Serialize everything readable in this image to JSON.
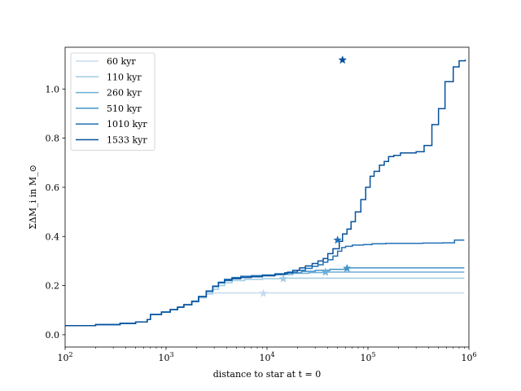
{
  "chart_data": {
    "type": "line",
    "drawstyle": "steps-post",
    "xscale": "log",
    "xlabel": "distance to star at t = 0",
    "ylabel": "ΣΔM_i in M_⊙",
    "xlim": [
      100,
      1000000
    ],
    "ylim": [
      -0.05,
      1.17
    ],
    "x_ticks": [
      {
        "value": 100,
        "base": "10",
        "exp": "2"
      },
      {
        "value": 1000,
        "base": "10",
        "exp": "3"
      },
      {
        "value": 10000,
        "base": "10",
        "exp": "4"
      },
      {
        "value": 100000,
        "base": "10",
        "exp": "5"
      },
      {
        "value": 1000000,
        "base": "10",
        "exp": "6"
      }
    ],
    "y_ticks": [
      "0.0",
      "0.2",
      "0.4",
      "0.6",
      "0.8",
      "1.0"
    ],
    "legend_position": "upper-left",
    "series": [
      {
        "name": "60 kyr",
        "color": "#c6dbef",
        "star": [
          9200,
          0.168
        ],
        "points": [
          [
            100,
            0.037
          ],
          [
            200,
            0.041
          ],
          [
            350,
            0.046
          ],
          [
            500,
            0.052
          ],
          [
            650,
            0.062
          ],
          [
            700,
            0.082
          ],
          [
            900,
            0.092
          ],
          [
            1100,
            0.102
          ],
          [
            1300,
            0.112
          ],
          [
            1500,
            0.122
          ],
          [
            1800,
            0.134
          ],
          [
            2100,
            0.15
          ],
          [
            2500,
            0.165
          ],
          [
            2900,
            0.17
          ],
          [
            9200,
            0.17
          ],
          [
            900000,
            0.17
          ]
        ]
      },
      {
        "name": "110 kyr",
        "color": "#9ecae1",
        "star": [
          14500,
          0.228
        ],
        "points": [
          [
            100,
            0.037
          ],
          [
            200,
            0.041
          ],
          [
            350,
            0.046
          ],
          [
            500,
            0.052
          ],
          [
            650,
            0.062
          ],
          [
            700,
            0.082
          ],
          [
            900,
            0.092
          ],
          [
            1100,
            0.102
          ],
          [
            1300,
            0.112
          ],
          [
            1500,
            0.122
          ],
          [
            1800,
            0.134
          ],
          [
            2100,
            0.15
          ],
          [
            2500,
            0.168
          ],
          [
            2900,
            0.185
          ],
          [
            3300,
            0.2
          ],
          [
            3800,
            0.212
          ],
          [
            4500,
            0.22
          ],
          [
            6000,
            0.225
          ],
          [
            9000,
            0.228
          ],
          [
            14500,
            0.23
          ],
          [
            900000,
            0.23
          ]
        ]
      },
      {
        "name": "260 kyr",
        "color": "#6baed6",
        "star": [
          38000,
          0.255
        ],
        "points": [
          [
            100,
            0.037
          ],
          [
            200,
            0.041
          ],
          [
            350,
            0.046
          ],
          [
            500,
            0.052
          ],
          [
            650,
            0.062
          ],
          [
            700,
            0.082
          ],
          [
            900,
            0.092
          ],
          [
            1100,
            0.102
          ],
          [
            1300,
            0.112
          ],
          [
            1500,
            0.122
          ],
          [
            1800,
            0.136
          ],
          [
            2100,
            0.155
          ],
          [
            2500,
            0.175
          ],
          [
            2900,
            0.195
          ],
          [
            3300,
            0.21
          ],
          [
            3800,
            0.22
          ],
          [
            4500,
            0.228
          ],
          [
            5500,
            0.235
          ],
          [
            7000,
            0.238
          ],
          [
            9000,
            0.24
          ],
          [
            12000,
            0.245
          ],
          [
            18000,
            0.25
          ],
          [
            26000,
            0.253
          ],
          [
            38000,
            0.255
          ],
          [
            900000,
            0.255
          ]
        ]
      },
      {
        "name": "510 kyr",
        "color": "#4292c6",
        "star": [
          62000,
          0.27
        ],
        "points": [
          [
            100,
            0.037
          ],
          [
            200,
            0.041
          ],
          [
            350,
            0.046
          ],
          [
            500,
            0.052
          ],
          [
            650,
            0.062
          ],
          [
            700,
            0.082
          ],
          [
            900,
            0.092
          ],
          [
            1100,
            0.102
          ],
          [
            1300,
            0.112
          ],
          [
            1500,
            0.122
          ],
          [
            1800,
            0.136
          ],
          [
            2100,
            0.155
          ],
          [
            2500,
            0.178
          ],
          [
            2900,
            0.198
          ],
          [
            3300,
            0.213
          ],
          [
            3800,
            0.225
          ],
          [
            4500,
            0.233
          ],
          [
            5500,
            0.238
          ],
          [
            7000,
            0.24
          ],
          [
            9000,
            0.243
          ],
          [
            12000,
            0.248
          ],
          [
            16000,
            0.252
          ],
          [
            22000,
            0.258
          ],
          [
            30000,
            0.262
          ],
          [
            42000,
            0.266
          ],
          [
            62000,
            0.272
          ],
          [
            900000,
            0.272
          ]
        ]
      },
      {
        "name": "1010 kyr",
        "color": "#2171b5",
        "star": [
          50000,
          0.385
        ],
        "points": [
          [
            100,
            0.037
          ],
          [
            200,
            0.041
          ],
          [
            350,
            0.046
          ],
          [
            500,
            0.052
          ],
          [
            650,
            0.062
          ],
          [
            700,
            0.082
          ],
          [
            900,
            0.092
          ],
          [
            1100,
            0.102
          ],
          [
            1300,
            0.112
          ],
          [
            1500,
            0.122
          ],
          [
            1800,
            0.136
          ],
          [
            2100,
            0.155
          ],
          [
            2500,
            0.178
          ],
          [
            2900,
            0.198
          ],
          [
            3300,
            0.213
          ],
          [
            3800,
            0.225
          ],
          [
            4500,
            0.232
          ],
          [
            5500,
            0.237
          ],
          [
            7000,
            0.24
          ],
          [
            9000,
            0.243
          ],
          [
            12000,
            0.248
          ],
          [
            16000,
            0.255
          ],
          [
            20000,
            0.262
          ],
          [
            24000,
            0.27
          ],
          [
            28000,
            0.278
          ],
          [
            32000,
            0.285
          ],
          [
            36000,
            0.295
          ],
          [
            40000,
            0.305
          ],
          [
            45000,
            0.32
          ],
          [
            50000,
            0.34
          ],
          [
            55000,
            0.355
          ],
          [
            60000,
            0.36
          ],
          [
            70000,
            0.365
          ],
          [
            90000,
            0.367
          ],
          [
            110000,
            0.37
          ],
          [
            150000,
            0.372
          ],
          [
            250000,
            0.372
          ],
          [
            350000,
            0.373
          ],
          [
            550000,
            0.374
          ],
          [
            720000,
            0.385
          ],
          [
            900000,
            0.385
          ]
        ]
      },
      {
        "name": "1533 kyr",
        "color": "#08519c",
        "star": [
          56000,
          1.118
        ],
        "points": [
          [
            100,
            0.037
          ],
          [
            200,
            0.041
          ],
          [
            350,
            0.046
          ],
          [
            500,
            0.052
          ],
          [
            650,
            0.062
          ],
          [
            700,
            0.082
          ],
          [
            900,
            0.092
          ],
          [
            1100,
            0.102
          ],
          [
            1300,
            0.112
          ],
          [
            1500,
            0.122
          ],
          [
            1800,
            0.136
          ],
          [
            2100,
            0.155
          ],
          [
            2500,
            0.178
          ],
          [
            2900,
            0.198
          ],
          [
            3300,
            0.213
          ],
          [
            3800,
            0.222
          ],
          [
            4500,
            0.228
          ],
          [
            5500,
            0.233
          ],
          [
            7000,
            0.236
          ],
          [
            9000,
            0.24
          ],
          [
            12000,
            0.245
          ],
          [
            15000,
            0.252
          ],
          [
            18000,
            0.262
          ],
          [
            21000,
            0.272
          ],
          [
            24000,
            0.28
          ],
          [
            28000,
            0.29
          ],
          [
            32000,
            0.3
          ],
          [
            36000,
            0.31
          ],
          [
            40000,
            0.33
          ],
          [
            45000,
            0.35
          ],
          [
            52000,
            0.38
          ],
          [
            56000,
            0.41
          ],
          [
            62000,
            0.43
          ],
          [
            68000,
            0.46
          ],
          [
            75000,
            0.5
          ],
          [
            85000,
            0.55
          ],
          [
            95000,
            0.6
          ],
          [
            105000,
            0.645
          ],
          [
            115000,
            0.665
          ],
          [
            130000,
            0.69
          ],
          [
            145000,
            0.705
          ],
          [
            160000,
            0.725
          ],
          [
            180000,
            0.73
          ],
          [
            210000,
            0.74
          ],
          [
            300000,
            0.745
          ],
          [
            360000,
            0.77
          ],
          [
            430000,
            0.855
          ],
          [
            500000,
            0.92
          ],
          [
            580000,
            1.03
          ],
          [
            700000,
            1.09
          ],
          [
            800000,
            1.115
          ],
          [
            920000,
            1.12
          ]
        ]
      }
    ]
  }
}
